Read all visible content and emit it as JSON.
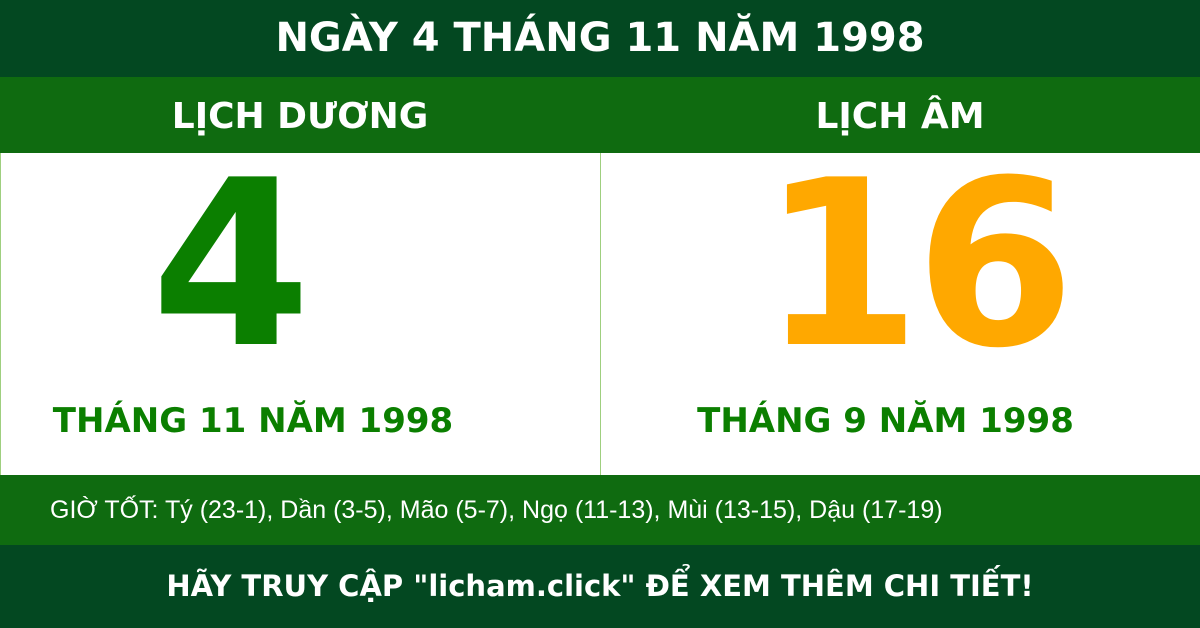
{
  "title": "NGÀY 4 THÁNG 11 NĂM 1998",
  "solar": {
    "label": "LỊCH DƯƠNG",
    "day": "4",
    "month_year": "THÁNG 11 NĂM 1998"
  },
  "lunar": {
    "label": "LỊCH ÂM",
    "day": "16",
    "month_year": "THÁNG 9 NĂM 1998"
  },
  "good_hours": "GIỜ TỐT: Tý (23-1), Dần (3-5), Mão (5-7), Ngọ (11-13), Mùi (13-15), Dậu (17-19)",
  "footer": "HÃY TRUY CẬP \"licham.click\" ĐỂ XEM THÊM CHI TIẾT!",
  "colors": {
    "dark_green": "#034821",
    "green": "#0f6b10",
    "solar_day": "#0b7f00",
    "lunar_day": "#ffa800"
  }
}
